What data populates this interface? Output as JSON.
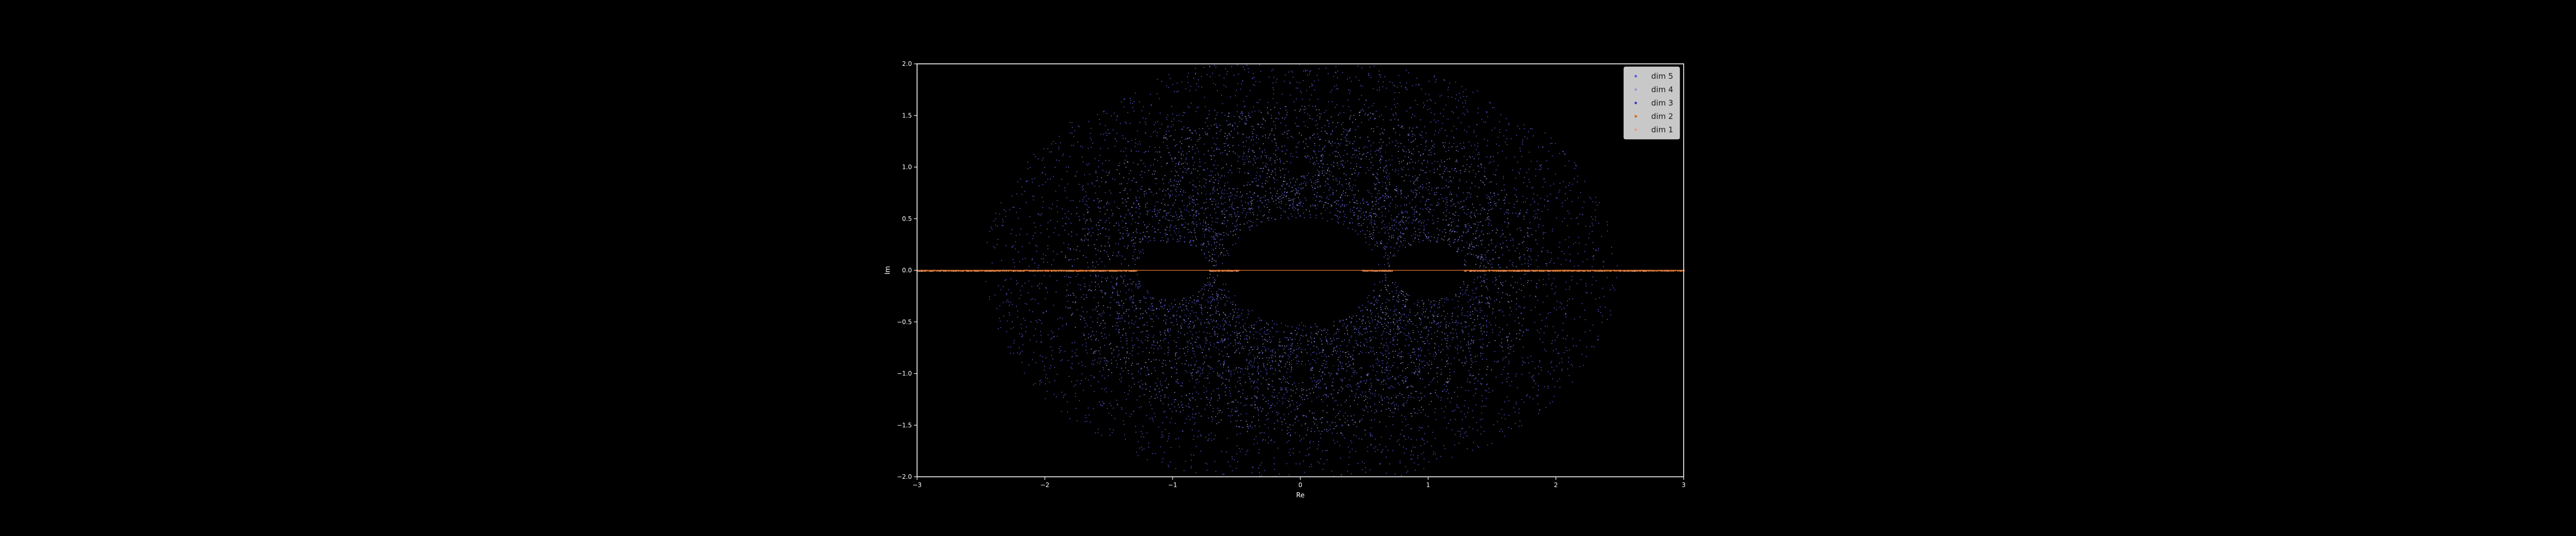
{
  "chart_data": {
    "type": "scatter",
    "title": "",
    "xlabel": "Re",
    "ylabel": "Im",
    "xlim": [
      -3,
      3
    ],
    "ylim": [
      -2,
      2
    ],
    "xticks": [
      "−3",
      "−2",
      "−1",
      "0",
      "1",
      "2",
      "3"
    ],
    "yticks": [
      "−2.0",
      "−1.5",
      "−1.0",
      "−0.5",
      "0.0",
      "0.5",
      "1.0",
      "1.5",
      "2.0"
    ],
    "xtick_values": [
      -3,
      -2,
      -1,
      0,
      1,
      2,
      3
    ],
    "ytick_values": [
      -2.0,
      -1.5,
      -1.0,
      -0.5,
      0.0,
      0.5,
      1.0,
      1.5,
      2.0
    ],
    "grid": false,
    "legend_position": "top-right",
    "background": "#000000",
    "description_note": "",
    "series": [
      {
        "name": "dim 5",
        "color": "#5a5ae0",
        "region": "annulus",
        "r_inner": 0.5,
        "r_outer": 2.1,
        "density": "high"
      },
      {
        "name": "dim 4",
        "color": "#9a9adc",
        "region": "annulus",
        "r_inner": 0.55,
        "r_outer": 1.6,
        "density": "medium"
      },
      {
        "name": "dim 3",
        "color": "#3f3fbf",
        "region": "annulus",
        "r_inner": 0.6,
        "r_outer": 1.3,
        "density": "low"
      },
      {
        "name": "dim 2",
        "color": "#d2691e",
        "region": "real-axis",
        "x_range": [
          -3,
          3
        ],
        "density": "medium"
      },
      {
        "name": "dim 1",
        "color": "#e8a07a",
        "region": "real-axis",
        "x_range": [
          -3,
          3
        ],
        "density": "low"
      }
    ],
    "holes": [
      {
        "center": [
          0,
          0
        ],
        "radius": 0.48
      },
      {
        "center": [
          -1,
          0
        ],
        "radius": 0.28
      },
      {
        "center": [
          1,
          0
        ],
        "radius": 0.28
      },
      {
        "center": [
          0,
          1
        ],
        "radius": 0.08
      },
      {
        "center": [
          0,
          -1
        ],
        "radius": 0.08
      },
      {
        "center": [
          0.5,
          0.87
        ],
        "radius": 0.07
      },
      {
        "center": [
          -0.5,
          0.87
        ],
        "radius": 0.07
      },
      {
        "center": [
          0.5,
          -0.87
        ],
        "radius": 0.07
      },
      {
        "center": [
          -0.5,
          -0.87
        ],
        "radius": 0.07
      }
    ]
  }
}
